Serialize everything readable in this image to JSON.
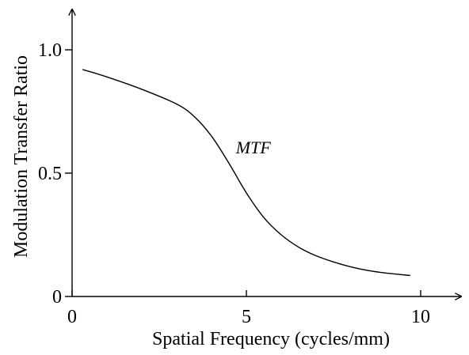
{
  "chart_data": {
    "type": "line",
    "xlabel": "Spatial Frequency (cycles/mm)",
    "ylabel": "Modulation Transfer Ratio",
    "xlim": [
      0,
      11
    ],
    "ylim": [
      0,
      1.1
    ],
    "x_ticks": [
      0,
      5,
      10
    ],
    "x_tick_labels": [
      "0",
      "5",
      "10"
    ],
    "y_ticks": [
      0,
      0.5,
      1.0
    ],
    "y_tick_labels": [
      "0",
      "0.5",
      "1.0"
    ],
    "grid": false,
    "series": [
      {
        "name": "MTF",
        "color": "#000000",
        "x": [
          0.3,
          1.0,
          2.0,
          3.0,
          3.5,
          4.0,
          4.5,
          5.0,
          5.5,
          6.0,
          6.5,
          7.0,
          7.5,
          8.0,
          8.5,
          9.0,
          9.7
        ],
        "y": [
          0.92,
          0.89,
          0.84,
          0.78,
          0.73,
          0.65,
          0.54,
          0.42,
          0.32,
          0.25,
          0.2,
          0.165,
          0.14,
          0.12,
          0.105,
          0.095,
          0.085
        ]
      }
    ]
  }
}
